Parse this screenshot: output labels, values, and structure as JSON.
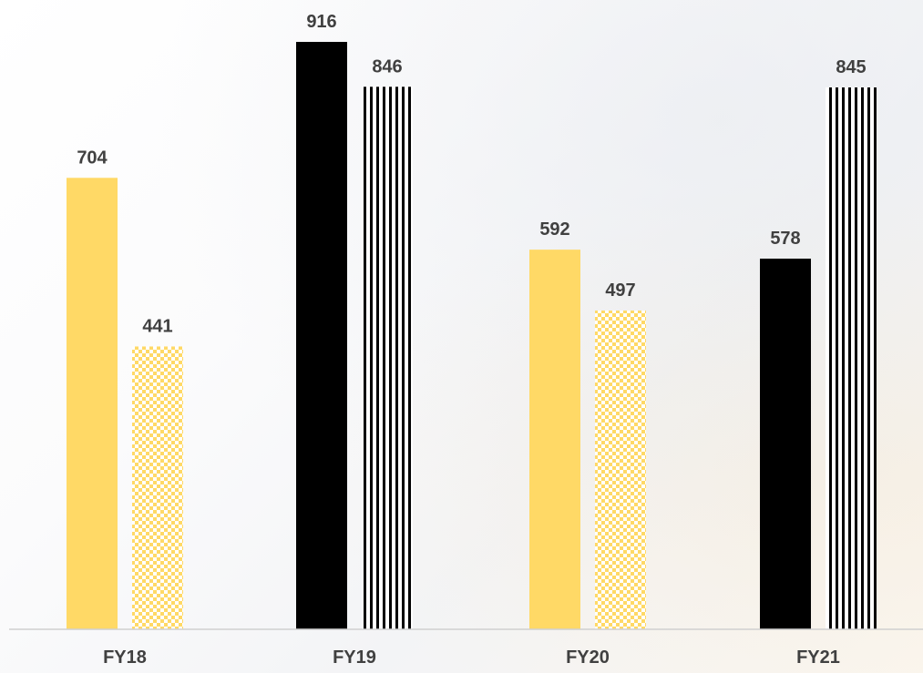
{
  "chart_data": {
    "type": "bar",
    "categories": [
      "FY18",
      "FY19",
      "FY20",
      "FY21"
    ],
    "bars": [
      {
        "category": "FY18",
        "value": 704,
        "color": "#FFD966",
        "pattern": "solid"
      },
      {
        "category": "FY18",
        "value": 441,
        "color": "#FFD966",
        "pattern": "checker"
      },
      {
        "category": "FY19",
        "value": 916,
        "color": "#000000",
        "pattern": "solid"
      },
      {
        "category": "FY19",
        "value": 846,
        "color": "#000000",
        "pattern": "vertical-stripes"
      },
      {
        "category": "FY20",
        "value": 592,
        "color": "#FFD966",
        "pattern": "solid"
      },
      {
        "category": "FY20",
        "value": 497,
        "color": "#FFD966",
        "pattern": "checker"
      },
      {
        "category": "FY21",
        "value": 578,
        "color": "#000000",
        "pattern": "solid"
      },
      {
        "category": "FY21",
        "value": 845,
        "color": "#000000",
        "pattern": "vertical-stripes"
      }
    ],
    "ylim": [
      0,
      916
    ],
    "grid": false,
    "legend": "none",
    "colors": {
      "gold": "#FFD966",
      "black": "#000000",
      "label": "#404040",
      "axis": "#d0d0d0"
    }
  }
}
